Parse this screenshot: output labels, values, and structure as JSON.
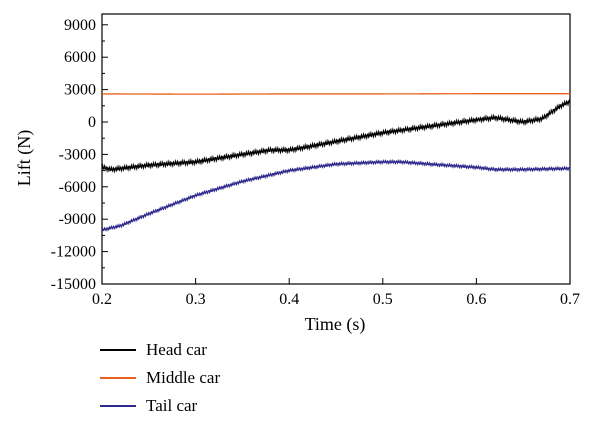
{
  "chart_data": {
    "type": "line",
    "xlabel": "Time (s)",
    "ylabel": "Lift (N)",
    "xlim": [
      0.2,
      0.7
    ],
    "ylim": [
      -15000,
      10000
    ],
    "xticks": [
      0.2,
      0.3,
      0.4,
      0.5,
      0.6,
      0.7
    ],
    "yticks": [
      -15000,
      -12000,
      -9000,
      -6000,
      -3000,
      0,
      3000,
      6000,
      9000
    ],
    "xtick_labels": [
      "0.2",
      "0.3",
      "0.4",
      "0.5",
      "0.6",
      "0.7"
    ],
    "ytick_labels": [
      "-15000",
      "-12000",
      "-9000",
      "-6000",
      "-3000",
      "0",
      "3000",
      "6000",
      "9000"
    ],
    "grid": false,
    "legend_position": "bottom-left, below plot",
    "series": [
      {
        "name": "Head car",
        "color": "#000000",
        "x": [
          0.2,
          0.21,
          0.22,
          0.25,
          0.3,
          0.35,
          0.38,
          0.4,
          0.42,
          0.45,
          0.5,
          0.55,
          0.6,
          0.62,
          0.65,
          0.67,
          0.69,
          0.7
        ],
        "y": [
          -4200,
          -4400,
          -4300,
          -4000,
          -3700,
          -3000,
          -2600,
          -2600,
          -2300,
          -1800,
          -1000,
          -400,
          200,
          400,
          0,
          300,
          1500,
          1900
        ]
      },
      {
        "name": "Middle car",
        "color": "#e8601c",
        "x": [
          0.2,
          0.3,
          0.4,
          0.5,
          0.6,
          0.7
        ],
        "y": [
          2600,
          2580,
          2600,
          2600,
          2620,
          2620
        ]
      },
      {
        "name": "Tail car",
        "color": "#2d2a8c",
        "x": [
          0.2,
          0.22,
          0.25,
          0.3,
          0.35,
          0.4,
          0.45,
          0.5,
          0.52,
          0.55,
          0.6,
          0.62,
          0.65,
          0.7
        ],
        "y": [
          -10000,
          -9600,
          -8500,
          -6800,
          -5500,
          -4500,
          -3900,
          -3700,
          -3700,
          -3900,
          -4200,
          -4400,
          -4400,
          -4300
        ]
      }
    ]
  }
}
